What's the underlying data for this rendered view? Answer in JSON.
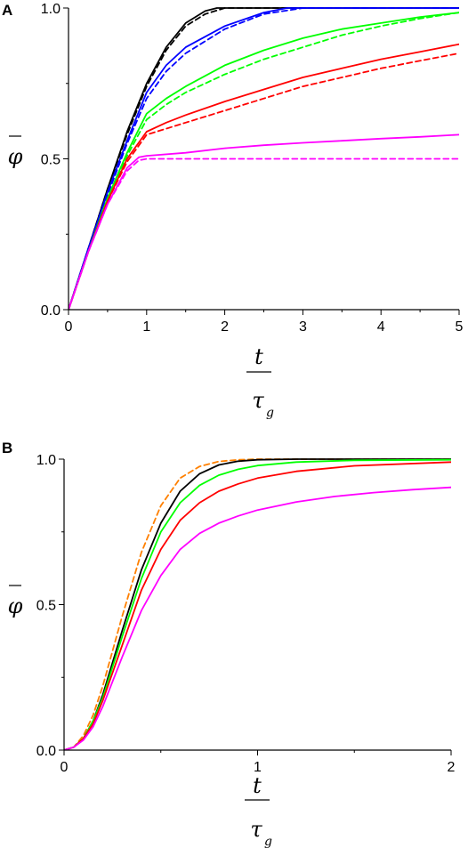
{
  "chart_data": [
    {
      "panel_label": "A",
      "type": "line",
      "ylabel": "φ",
      "xlabel_num": "t",
      "xlabel_den": "τ",
      "xlabel_sub": "g",
      "xlim": [
        0,
        5
      ],
      "ylim": [
        0,
        1
      ],
      "xticks": [
        "0",
        "1",
        "2",
        "3",
        "4",
        "5"
      ],
      "yticks": [
        "0.0",
        "0.5",
        "1.0"
      ],
      "series": [
        {
          "color": "#000000",
          "dash": "solid",
          "x": [
            0,
            0.25,
            0.5,
            0.75,
            1.0,
            1.25,
            1.5,
            1.75,
            1.9,
            2.0,
            5
          ],
          "y": [
            0,
            0.2,
            0.4,
            0.59,
            0.75,
            0.87,
            0.95,
            0.99,
            1.0,
            1.0,
            1.0
          ]
        },
        {
          "color": "#000000",
          "dash": "dashed",
          "x": [
            0,
            0.25,
            0.5,
            0.75,
            1.0,
            1.25,
            1.5,
            1.75,
            2.0,
            5
          ],
          "y": [
            0,
            0.2,
            0.4,
            0.58,
            0.74,
            0.86,
            0.94,
            0.98,
            1.0,
            1.0
          ]
        },
        {
          "color": "#0000ff",
          "dash": "solid",
          "x": [
            0,
            0.25,
            0.5,
            0.75,
            1.0,
            1.25,
            1.5,
            2.0,
            2.5,
            2.8,
            3.0,
            5
          ],
          "y": [
            0,
            0.2,
            0.39,
            0.56,
            0.72,
            0.81,
            0.87,
            0.94,
            0.985,
            1.0,
            1.0,
            1.0
          ]
        },
        {
          "color": "#0000ff",
          "dash": "dashed",
          "x": [
            0,
            0.25,
            0.5,
            0.75,
            1.0,
            1.25,
            1.5,
            2.0,
            2.5,
            3.0,
            5
          ],
          "y": [
            0,
            0.2,
            0.38,
            0.55,
            0.7,
            0.79,
            0.85,
            0.93,
            0.98,
            1.0,
            1.0
          ]
        },
        {
          "color": "#00ff00",
          "dash": "solid",
          "x": [
            0,
            0.25,
            0.5,
            0.75,
            1.0,
            1.25,
            1.5,
            2.0,
            2.5,
            3.0,
            3.5,
            4.0,
            4.5,
            5.0
          ],
          "y": [
            0,
            0.19,
            0.37,
            0.52,
            0.65,
            0.7,
            0.74,
            0.81,
            0.86,
            0.9,
            0.93,
            0.95,
            0.97,
            0.985
          ]
        },
        {
          "color": "#00ff00",
          "dash": "dashed",
          "x": [
            0,
            0.25,
            0.5,
            0.75,
            1.0,
            1.25,
            1.5,
            2.0,
            2.5,
            3.0,
            3.5,
            4.0,
            4.5,
            5.0
          ],
          "y": [
            0,
            0.19,
            0.37,
            0.51,
            0.63,
            0.68,
            0.72,
            0.78,
            0.83,
            0.87,
            0.91,
            0.94,
            0.965,
            0.985
          ]
        },
        {
          "color": "#ff0000",
          "dash": "solid",
          "x": [
            0,
            0.25,
            0.5,
            0.75,
            1.0,
            1.25,
            1.5,
            2.0,
            2.5,
            3.0,
            3.5,
            4.0,
            4.5,
            5.0
          ],
          "y": [
            0,
            0.19,
            0.36,
            0.5,
            0.59,
            0.62,
            0.645,
            0.69,
            0.73,
            0.77,
            0.8,
            0.83,
            0.855,
            0.88
          ]
        },
        {
          "color": "#ff0000",
          "dash": "dashed",
          "x": [
            0,
            0.25,
            0.5,
            0.75,
            1.0,
            1.25,
            1.5,
            2.0,
            2.5,
            3.0,
            3.5,
            4.0,
            4.5,
            5.0
          ],
          "y": [
            0,
            0.19,
            0.36,
            0.49,
            0.58,
            0.6,
            0.62,
            0.66,
            0.7,
            0.74,
            0.77,
            0.8,
            0.825,
            0.85
          ]
        },
        {
          "color": "#ff00ff",
          "dash": "solid",
          "x": [
            0,
            0.25,
            0.5,
            0.75,
            0.9,
            1.0,
            1.5,
            2.0,
            2.5,
            3.0,
            3.5,
            4.0,
            4.5,
            5.0
          ],
          "y": [
            0,
            0.19,
            0.35,
            0.47,
            0.505,
            0.51,
            0.52,
            0.535,
            0.545,
            0.553,
            0.56,
            0.567,
            0.573,
            0.58
          ]
        },
        {
          "color": "#ff00ff",
          "dash": "dashed",
          "x": [
            0,
            0.25,
            0.5,
            0.75,
            0.9,
            1.0,
            1.5,
            2.0,
            3.0,
            4.0,
            5.0
          ],
          "y": [
            0,
            0.19,
            0.35,
            0.46,
            0.495,
            0.5,
            0.5,
            0.5,
            0.5,
            0.5,
            0.5
          ]
        }
      ]
    },
    {
      "panel_label": "B",
      "type": "line",
      "ylabel": "φ",
      "xlabel_num": "t",
      "xlabel_den": "τ",
      "xlabel_sub": "g",
      "xlim": [
        0,
        2
      ],
      "ylim": [
        0,
        1
      ],
      "xticks": [
        "0",
        "1",
        "2"
      ],
      "yticks": [
        "0.0",
        "0.5",
        "1.0"
      ],
      "series": [
        {
          "color": "#ff8000",
          "dash": "dashed",
          "x": [
            0,
            0.05,
            0.1,
            0.15,
            0.2,
            0.3,
            0.4,
            0.5,
            0.6,
            0.7,
            0.8,
            0.9,
            1.0,
            1.2,
            1.5,
            2.0
          ],
          "y": [
            0,
            0.01,
            0.05,
            0.12,
            0.22,
            0.46,
            0.68,
            0.84,
            0.935,
            0.975,
            0.992,
            0.998,
            1.0,
            1.0,
            1.0,
            1.0
          ]
        },
        {
          "color": "#000000",
          "dash": "solid",
          "x": [
            0,
            0.05,
            0.1,
            0.15,
            0.2,
            0.3,
            0.4,
            0.5,
            0.6,
            0.7,
            0.8,
            0.9,
            1.0,
            1.2,
            1.5,
            2.0
          ],
          "y": [
            0,
            0.01,
            0.04,
            0.1,
            0.19,
            0.41,
            0.62,
            0.78,
            0.89,
            0.95,
            0.98,
            0.993,
            0.998,
            1.0,
            1.0,
            1.0
          ]
        },
        {
          "color": "#00ff00",
          "dash": "solid",
          "x": [
            0,
            0.05,
            0.1,
            0.15,
            0.2,
            0.3,
            0.4,
            0.5,
            0.6,
            0.7,
            0.8,
            0.9,
            1.0,
            1.2,
            1.5,
            2.0
          ],
          "y": [
            0,
            0.01,
            0.04,
            0.1,
            0.18,
            0.39,
            0.59,
            0.75,
            0.85,
            0.91,
            0.945,
            0.965,
            0.978,
            0.99,
            0.996,
            0.998
          ]
        },
        {
          "color": "#ff0000",
          "dash": "solid",
          "x": [
            0,
            0.05,
            0.1,
            0.15,
            0.2,
            0.3,
            0.4,
            0.5,
            0.6,
            0.7,
            0.8,
            0.9,
            1.0,
            1.2,
            1.5,
            2.0
          ],
          "y": [
            0,
            0.01,
            0.04,
            0.09,
            0.17,
            0.36,
            0.55,
            0.69,
            0.79,
            0.85,
            0.89,
            0.915,
            0.935,
            0.958,
            0.977,
            0.99
          ]
        },
        {
          "color": "#ff00ff",
          "dash": "solid",
          "x": [
            0,
            0.05,
            0.1,
            0.15,
            0.2,
            0.3,
            0.4,
            0.5,
            0.6,
            0.7,
            0.8,
            0.9,
            1.0,
            1.2,
            1.4,
            1.6,
            1.8,
            2.0
          ],
          "y": [
            0,
            0.01,
            0.035,
            0.08,
            0.15,
            0.32,
            0.48,
            0.6,
            0.69,
            0.745,
            0.78,
            0.805,
            0.825,
            0.853,
            0.872,
            0.885,
            0.895,
            0.903
          ]
        }
      ]
    }
  ]
}
